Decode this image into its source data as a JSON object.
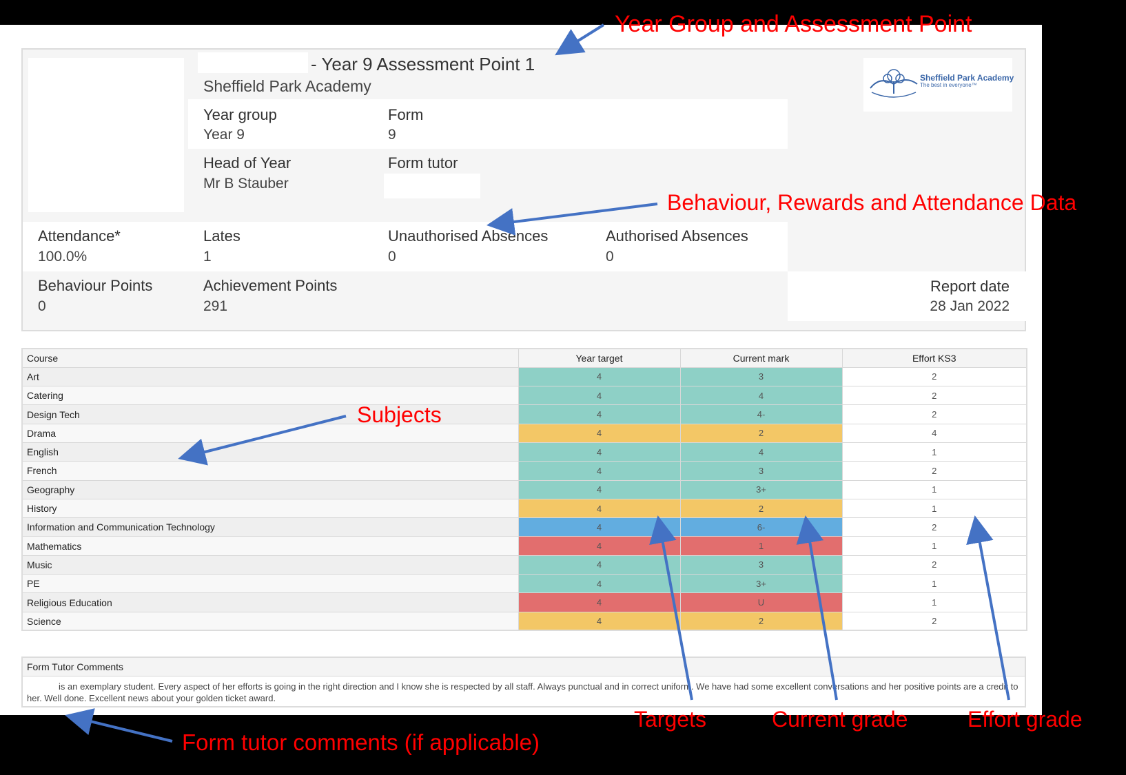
{
  "report": {
    "title": "- Year 9 Assessment Point 1",
    "school": "Sheffield Park Academy",
    "logo": {
      "name": "Sheffield Park Academy",
      "tagline": "The best in everyone™"
    },
    "year_group_label": "Year group",
    "year_group_value": "Year 9",
    "form_label": "Form",
    "form_value": "9",
    "head_of_year_label": "Head of Year",
    "head_of_year_value": "Mr B Stauber",
    "form_tutor_label": "Form tutor",
    "attendance_label": "Attendance*",
    "attendance_value": "100.0%",
    "lates_label": "Lates",
    "lates_value": "1",
    "unauth_label": "Unauthorised Absences",
    "unauth_value": "0",
    "auth_label": "Authorised Absences",
    "auth_value": "0",
    "behaviour_label": "Behaviour Points",
    "behaviour_value": "0",
    "achievement_label": "Achievement Points",
    "achievement_value": "291",
    "report_date_label": "Report date",
    "report_date_value": "28 Jan 2022"
  },
  "table": {
    "headers": [
      "Course",
      "Year target",
      "Current mark",
      "Effort KS3"
    ],
    "colors": {
      "green": "#8ed0c6",
      "amber": "#f3c766",
      "blue": "#62ade0",
      "red": "#e26e6e"
    },
    "rows": [
      {
        "course": "Art",
        "target": "4",
        "mark": "3",
        "effort": "2",
        "color": "green"
      },
      {
        "course": "Catering",
        "target": "4",
        "mark": "4",
        "effort": "2",
        "color": "green"
      },
      {
        "course": "Design Tech",
        "target": "4",
        "mark": "4-",
        "effort": "2",
        "color": "green"
      },
      {
        "course": "Drama",
        "target": "4",
        "mark": "2",
        "effort": "4",
        "color": "amber"
      },
      {
        "course": "English",
        "target": "4",
        "mark": "4",
        "effort": "1",
        "color": "green"
      },
      {
        "course": "French",
        "target": "4",
        "mark": "3",
        "effort": "2",
        "color": "green"
      },
      {
        "course": "Geography",
        "target": "4",
        "mark": "3+",
        "effort": "1",
        "color": "green"
      },
      {
        "course": "History",
        "target": "4",
        "mark": "2",
        "effort": "1",
        "color": "amber"
      },
      {
        "course": "Information and Communication Technology",
        "target": "4",
        "mark": "6-",
        "effort": "2",
        "color": "blue"
      },
      {
        "course": "Mathematics",
        "target": "4",
        "mark": "1",
        "effort": "1",
        "color": "red"
      },
      {
        "course": "Music",
        "target": "4",
        "mark": "3",
        "effort": "2",
        "color": "green"
      },
      {
        "course": "PE",
        "target": "4",
        "mark": "3+",
        "effort": "1",
        "color": "green"
      },
      {
        "course": "Religious Education",
        "target": "4",
        "mark": "U",
        "effort": "1",
        "color": "red"
      },
      {
        "course": "Science",
        "target": "4",
        "mark": "2",
        "effort": "2",
        "color": "amber"
      }
    ]
  },
  "comments": {
    "header": "Form Tutor Comments",
    "text": "is an exemplary student. Every aspect of her efforts is going in the right direction and I know she is respected by all staff. Always punctual and in correct uniform. We have had some excellent conversations and her positive points are a credit to her. Well done. Excellent news about your golden ticket award."
  },
  "annotations": {
    "year_group": "Year Group and Assessment Point",
    "behaviour": "Behaviour, Rewards and Attendance Data",
    "subjects": "Subjects",
    "comments": "Form tutor comments (if applicable)",
    "targets": "Targets",
    "current": "Current grade",
    "effort": "Effort grade",
    "color": "#ff0000",
    "arrow_color": "#4472c4"
  }
}
